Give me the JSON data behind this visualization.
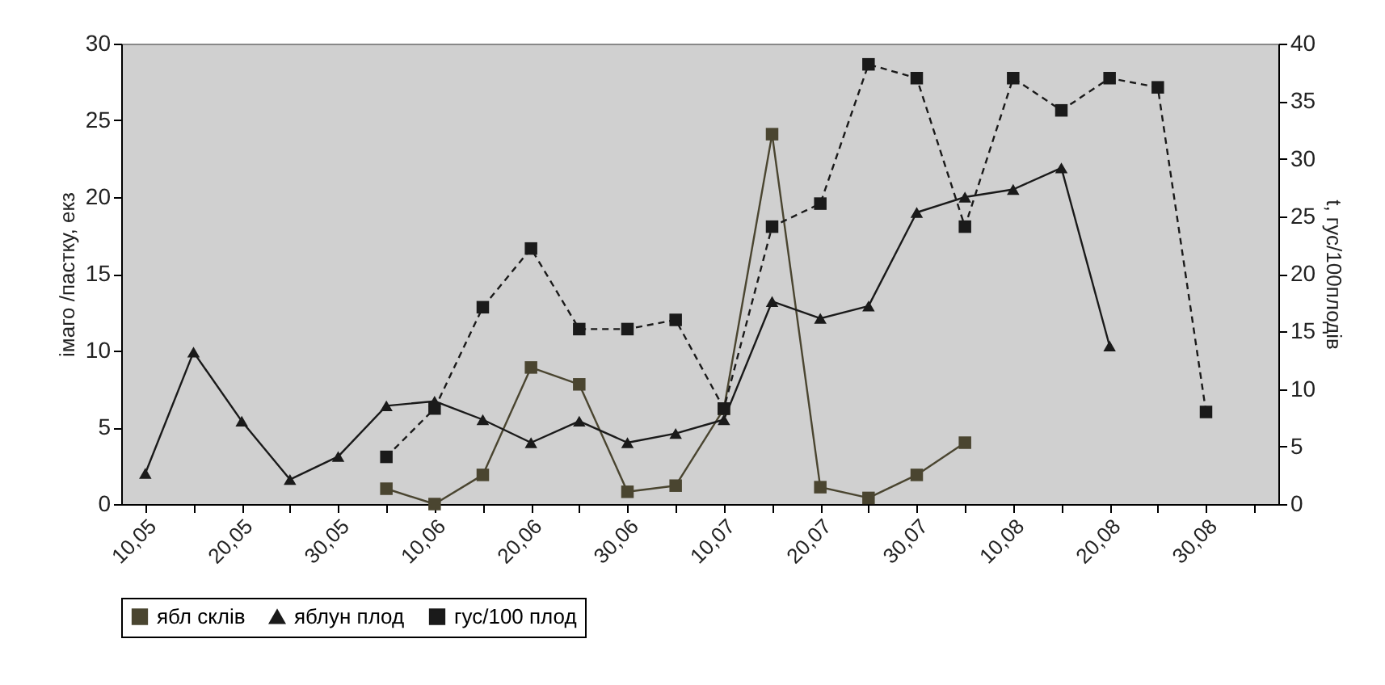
{
  "chart_data": {
    "type": "line",
    "ylabel": "імаго /пастку, екз",
    "y2label": "t, гус/100плодів",
    "categories": [
      "10,05",
      null,
      "20,05",
      null,
      "30,05",
      null,
      "10,06",
      null,
      "20,06",
      null,
      "30,06",
      null,
      "10,07",
      null,
      "20,07",
      null,
      "30,07",
      null,
      "10,08",
      null,
      "20,08",
      null,
      "30,08",
      null
    ],
    "series": [
      {
        "name": "ябл склів",
        "color": "#4a4530",
        "marker": "square",
        "line_style": "solid",
        "values": [
          null,
          null,
          null,
          null,
          null,
          1.0,
          0,
          1.9,
          8.9,
          7.8,
          0.8,
          1.2,
          6.2,
          24.1,
          1.1,
          0.4,
          1.9,
          4.0,
          null,
          null,
          null,
          null,
          null,
          null
        ]
      },
      {
        "name": "яблун плод",
        "color": "#1a1a1a",
        "marker": "triangle",
        "line_style": "solid",
        "values": [
          2.0,
          9.9,
          5.4,
          1.6,
          3.1,
          6.4,
          6.7,
          5.5,
          4.0,
          5.4,
          4.0,
          4.6,
          5.5,
          13.2,
          12.1,
          12.9,
          19.0,
          20.0,
          20.5,
          21.9,
          10.3,
          null,
          null,
          null
        ]
      },
      {
        "name": "гус/100 плод",
        "color": "#1a1a1a",
        "marker": "square",
        "line_style": "dashed",
        "axis": "y2",
        "values": [
          null,
          null,
          null,
          null,
          null,
          4.1,
          8.3,
          17.1,
          22.2,
          15.2,
          15.2,
          16.0,
          8.3,
          24.1,
          26.1,
          38.2,
          37.0,
          24.1,
          37.0,
          34.2,
          37.0,
          36.2,
          8.0,
          null
        ]
      }
    ],
    "ylim": [
      0,
      30
    ],
    "yticks": [
      0,
      5,
      10,
      15,
      20,
      25,
      30
    ],
    "y2lim": [
      0,
      40
    ],
    "y2ticks": [
      0,
      5,
      10,
      15,
      20,
      25,
      30,
      35,
      40
    ],
    "grid": false,
    "legend": "bottom"
  }
}
